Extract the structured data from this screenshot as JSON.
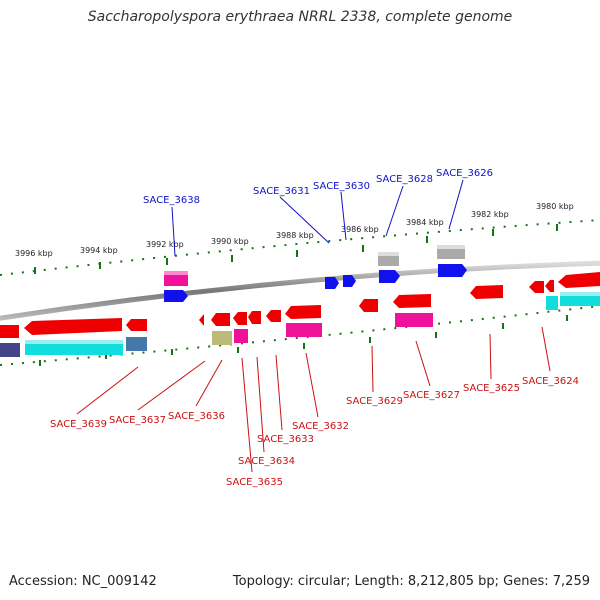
{
  "header": {
    "title": "Saccharopolyspora erythraea NRRL 2338, complete genome"
  },
  "footer": {
    "accession": "Accession: NC_009142",
    "topology": "Topology: circular; Length: 8,212,805 bp; Genes: 7,259"
  },
  "scale_labels": [
    "3996 kbp",
    "3994 kbp",
    "3992 kbp",
    "3990 kbp",
    "3988 kbp",
    "3986 kbp",
    "3984 kbp",
    "3982 kbp",
    "3980 kbp"
  ],
  "top_genes": [
    "SACE_3638",
    "SACE_3631",
    "SACE_3630",
    "SACE_3628",
    "SACE_3626"
  ],
  "bottom_genes": [
    "SACE_3639",
    "SACE_3637",
    "SACE_3636",
    "SACE_3635",
    "SACE_3634",
    "SACE_3633",
    "SACE_3632",
    "SACE_3629",
    "SACE_3627",
    "SACE_3625",
    "SACE_3624"
  ],
  "colors": {
    "cds": "#ee0000",
    "cds_magenta": "#ee1199",
    "cds_blue": "#1111ee",
    "rna_cyan": "#11dddd",
    "feature_gray": "#aaaaaa",
    "feature_navy": "#444488",
    "feature_steel": "#4477aa",
    "feature_olive": "#bbbb77",
    "scale_green": "#117711",
    "backbone": "#888888"
  }
}
